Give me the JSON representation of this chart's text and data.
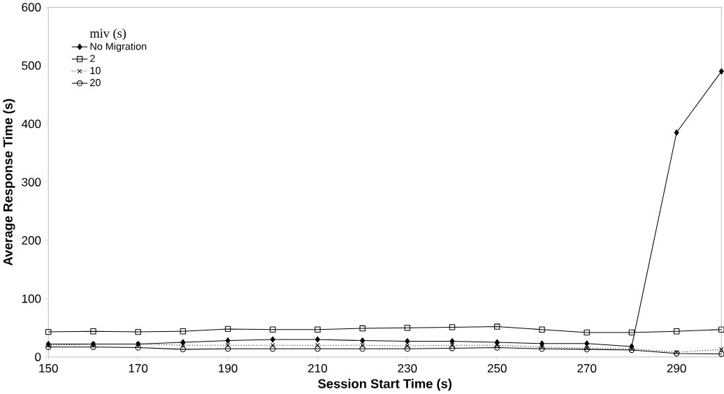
{
  "chart_data": {
    "type": "line",
    "xlabel": "Session Start Time (s)",
    "ylabel": "Average Response Time (s)",
    "legend_title": "miv (s)",
    "legend": "top left",
    "grid": false,
    "x": [
      150,
      160,
      170,
      180,
      190,
      200,
      210,
      220,
      230,
      240,
      250,
      260,
      270,
      280,
      290,
      300
    ],
    "xlim": [
      150,
      300
    ],
    "xticks": [
      150,
      170,
      190,
      210,
      230,
      250,
      270,
      290
    ],
    "ylim": [
      0,
      600
    ],
    "yticks": [
      0,
      100,
      200,
      300,
      400,
      500,
      600
    ],
    "series": [
      {
        "name": "No Migration",
        "color": "#000000",
        "marker": "diamond",
        "line_style": "solid",
        "values": [
          22,
          22,
          22,
          25,
          28,
          30,
          30,
          28,
          27,
          27,
          25,
          23,
          23,
          18,
          385,
          490
        ]
      },
      {
        "name": "2",
        "color": "#000000",
        "marker": "square",
        "line_style": "solid",
        "values": [
          43,
          44,
          43,
          44,
          48,
          47,
          47,
          49,
          50,
          51,
          52,
          47,
          42,
          42,
          44,
          47
        ]
      },
      {
        "name": "10",
        "color": "#000000",
        "marker": "cross",
        "line_style": "dotted",
        "values": [
          20,
          22,
          22,
          20,
          20,
          20,
          20,
          20,
          19,
          20,
          20,
          17,
          15,
          14,
          8,
          13
        ]
      },
      {
        "name": "20",
        "color": "#000000",
        "marker": "circle",
        "line_style": "solid",
        "values": [
          17,
          17,
          16,
          13,
          14,
          14,
          14,
          14,
          14,
          15,
          16,
          14,
          13,
          12,
          6,
          5
        ]
      }
    ]
  }
}
